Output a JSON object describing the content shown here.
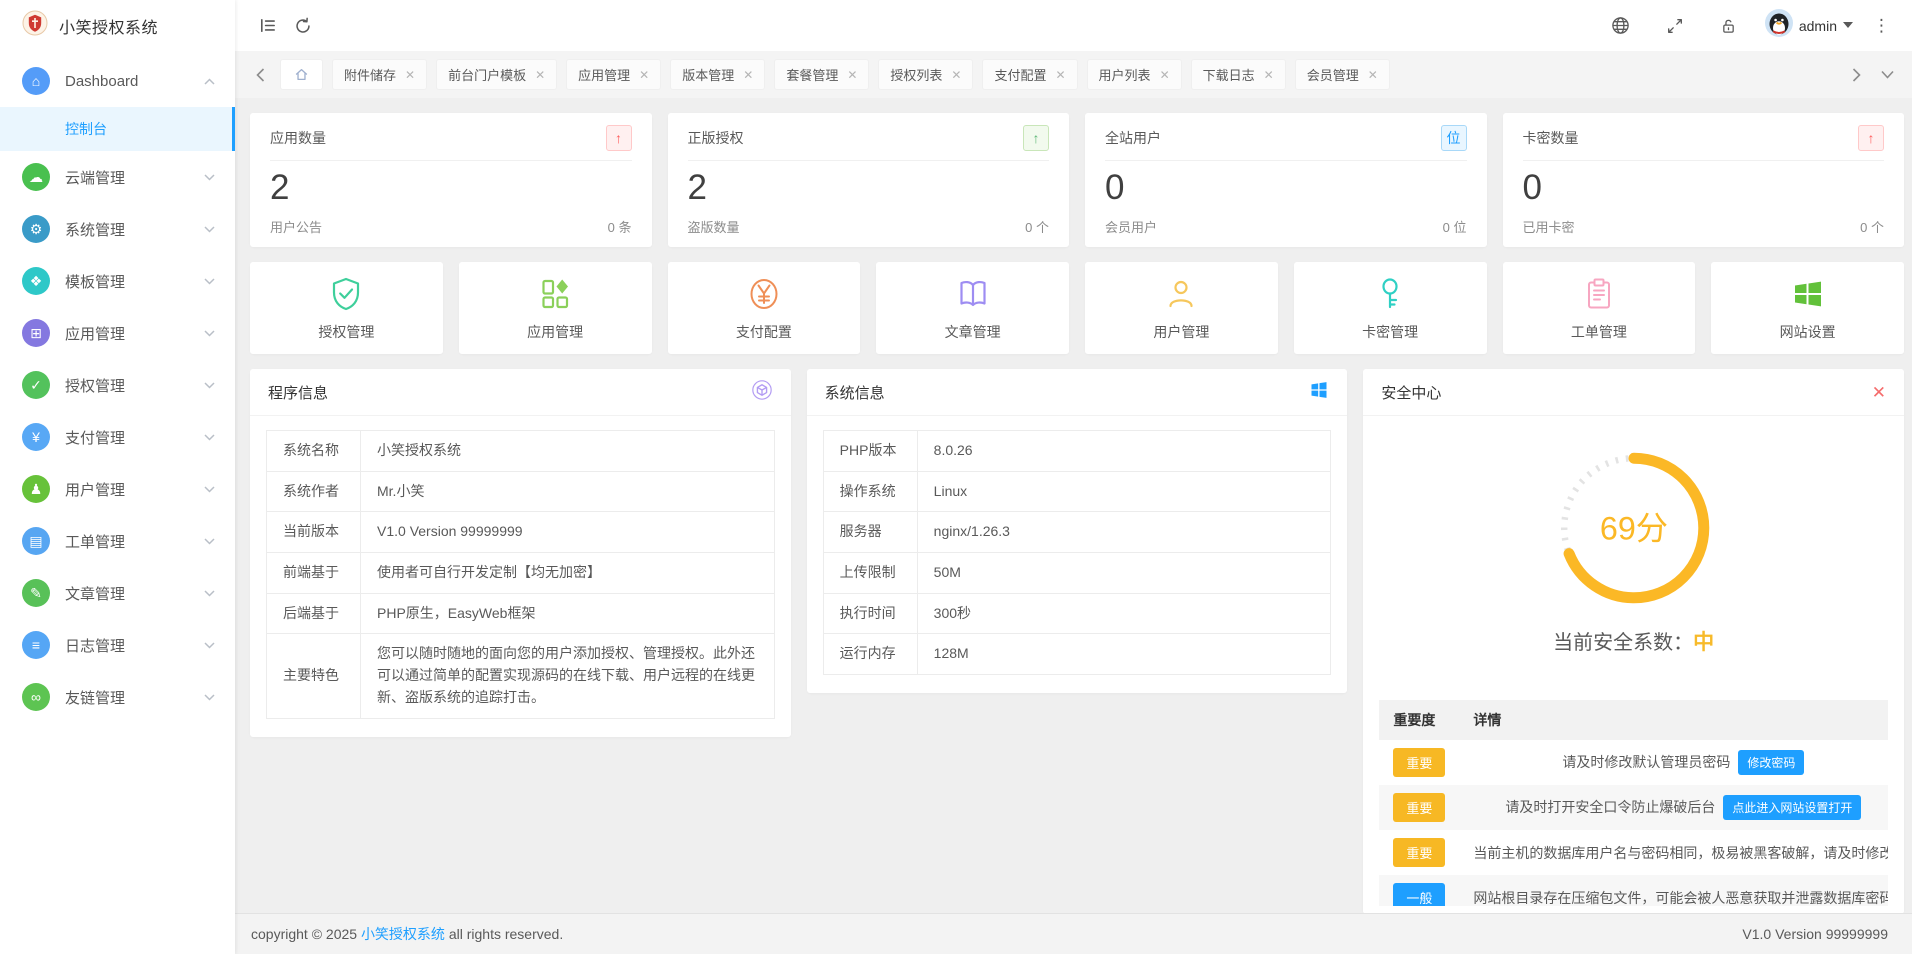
{
  "app": {
    "title": "小笑授权系统",
    "version_text": "V1.0 Version 99999999",
    "accent_color": "#1e9fff",
    "warn_color": "#f7b824"
  },
  "topbar": {
    "user": "admin",
    "icons": [
      "sidebar-toggle-icon",
      "refresh-icon",
      "language-globe-icon",
      "fullscreen-icon",
      "lock-icon",
      "avatar",
      "more-kebab-icon"
    ]
  },
  "sidebar": {
    "items": [
      {
        "label": "Dashboard",
        "icon": "home",
        "color": "#549cf8",
        "expanded": true,
        "children": [
          {
            "label": "控制台",
            "active": true
          }
        ]
      },
      {
        "label": "云端管理",
        "icon": "cloud",
        "color": "#49c04f"
      },
      {
        "label": "系统管理",
        "icon": "gear",
        "color": "#3a9bc8"
      },
      {
        "label": "模板管理",
        "icon": "palette",
        "color": "#2ec8c8"
      },
      {
        "label": "应用管理",
        "icon": "grid",
        "color": "#8478e0"
      },
      {
        "label": "授权管理",
        "icon": "shield-check",
        "color": "#53c25c"
      },
      {
        "label": "支付管理",
        "icon": "yen",
        "color": "#58a8f5"
      },
      {
        "label": "用户管理",
        "icon": "user",
        "color": "#67c23a"
      },
      {
        "label": "工单管理",
        "icon": "ticket",
        "color": "#57a6f2"
      },
      {
        "label": "文章管理",
        "icon": "article",
        "color": "#58c158"
      },
      {
        "label": "日志管理",
        "icon": "log",
        "color": "#55a6f5"
      },
      {
        "label": "友链管理",
        "icon": "link",
        "color": "#5dc452"
      }
    ]
  },
  "tabs": {
    "items": [
      "附件储存",
      "前台门户模板",
      "应用管理",
      "版本管理",
      "套餐管理",
      "授权列表",
      "支付配置",
      "用户列表",
      "下载日志",
      "会员管理"
    ]
  },
  "stats": [
    {
      "title": "应用数量",
      "badge": "↑",
      "badge_style": "red",
      "value": "2",
      "footer_label": "用户公告",
      "footer_value": "0 条"
    },
    {
      "title": "正版授权",
      "badge": "↑",
      "badge_style": "green",
      "value": "2",
      "footer_label": "盗版数量",
      "footer_value": "0 个"
    },
    {
      "title": "全站用户",
      "badge": "位",
      "badge_style": "blue",
      "value": "0",
      "footer_label": "会员用户",
      "footer_value": "0 位"
    },
    {
      "title": "卡密数量",
      "badge": "↑",
      "badge_style": "red",
      "value": "0",
      "footer_label": "已用卡密",
      "footer_value": "0 个"
    }
  ],
  "quick_links": [
    {
      "label": "授权管理",
      "icon": "shield-check",
      "color": "#3ecf9b"
    },
    {
      "label": "应用管理",
      "icon": "app-grid",
      "color": "#8bd05a"
    },
    {
      "label": "支付配置",
      "icon": "yen-circle",
      "color": "#ef8f57"
    },
    {
      "label": "文章管理",
      "icon": "book",
      "color": "#9e8df2"
    },
    {
      "label": "用户管理",
      "icon": "person",
      "color": "#f6c75c"
    },
    {
      "label": "卡密管理",
      "icon": "key",
      "color": "#2fd0c4"
    },
    {
      "label": "工单管理",
      "icon": "clipboard",
      "color": "#f7a6c1"
    },
    {
      "label": "网站设置",
      "icon": "windows",
      "color": "#62c13a"
    }
  ],
  "program_info": {
    "title": "程序信息",
    "rows": [
      [
        "系统名称",
        "小笑授权系统"
      ],
      [
        "系统作者",
        "Mr.小笑"
      ],
      [
        "当前版本",
        "V1.0 Version 99999999"
      ],
      [
        "前端基于",
        "使用者可自行开发定制【均无加密】"
      ],
      [
        "后端基于",
        "PHP原生，EasyWeb框架"
      ],
      [
        "主要特色",
        "您可以随时随地的面向您的用户添加授权、管理授权。此外还可以通过简单的配置实现源码的在线下载、用户远程的在线更新、盗版系统的追踪打击。"
      ]
    ]
  },
  "system_info": {
    "title": "系统信息",
    "rows": [
      [
        "PHP版本",
        "8.0.26"
      ],
      [
        "操作系统",
        "Linux"
      ],
      [
        "服务器",
        "nginx/1.26.3"
      ],
      [
        "上传限制",
        "50M"
      ],
      [
        "执行时间",
        "300秒"
      ],
      [
        "运行内存",
        "128M"
      ]
    ]
  },
  "security": {
    "title": "安全中心",
    "score_value": 69,
    "score_text": "69分",
    "gauge_color": "#fbb826",
    "level_label": "当前安全系数：",
    "level": "中",
    "table_headers": [
      "重要度",
      "详情"
    ],
    "items": [
      {
        "severity": "重要",
        "type": "warn",
        "text": "请及时修改默认管理员密码",
        "action": "修改密码"
      },
      {
        "severity": "重要",
        "type": "warn",
        "text": "请及时打开安全口令防止爆破后台",
        "action": "点此进入网站设置打开"
      },
      {
        "severity": "重要",
        "type": "warn",
        "text": "当前主机的数据库用户名与密码相同，极易被黑客破解，请及时修改"
      },
      {
        "severity": "一般",
        "type": "info",
        "text": "网站根目录存在压缩包文件，可能会被人恶意获取并泄露数据库密码"
      }
    ]
  },
  "footer": {
    "left_prefix": "copyright © 2025 ",
    "link_text": "小笑授权系统",
    "left_suffix": " all rights reserved.",
    "right": "V1.0 Version 99999999"
  }
}
